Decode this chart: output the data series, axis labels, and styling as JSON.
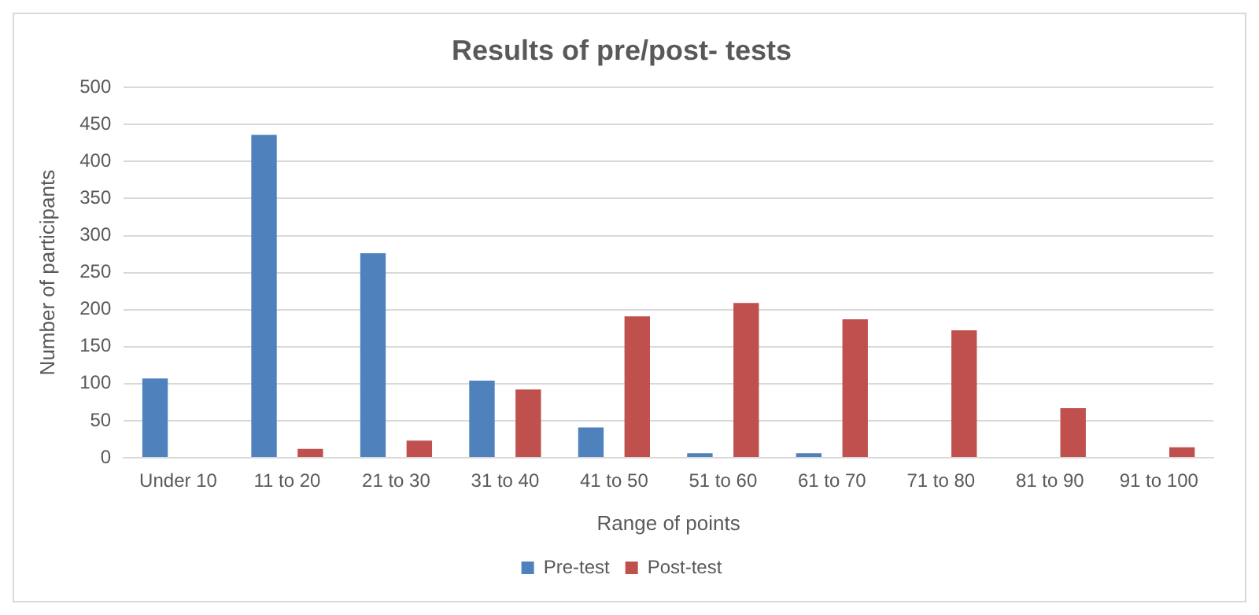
{
  "chart_data": {
    "type": "bar",
    "title": "Results of pre/post- tests",
    "xlabel": "Range of points",
    "ylabel": "Number of participants",
    "categories": [
      "Under 10",
      "11 to 20",
      "21 to 30",
      "31 to 40",
      "41 to 50",
      "51 to 60",
      "61 to 70",
      "71 to 80",
      "81 to 90",
      "91 to 100"
    ],
    "series": [
      {
        "name": "Pre-test",
        "color": "#4f81bd",
        "values": [
          107,
          436,
          276,
          104,
          41,
          6,
          6,
          0,
          0,
          0
        ]
      },
      {
        "name": "Post-test",
        "color": "#c0504d",
        "values": [
          0,
          12,
          23,
          92,
          191,
          209,
          187,
          172,
          67,
          14
        ]
      }
    ],
    "ylim": [
      0,
      500
    ],
    "yticks": [
      0,
      50,
      100,
      150,
      200,
      250,
      300,
      350,
      400,
      450,
      500
    ],
    "grid": "y",
    "legend": "bottom"
  }
}
